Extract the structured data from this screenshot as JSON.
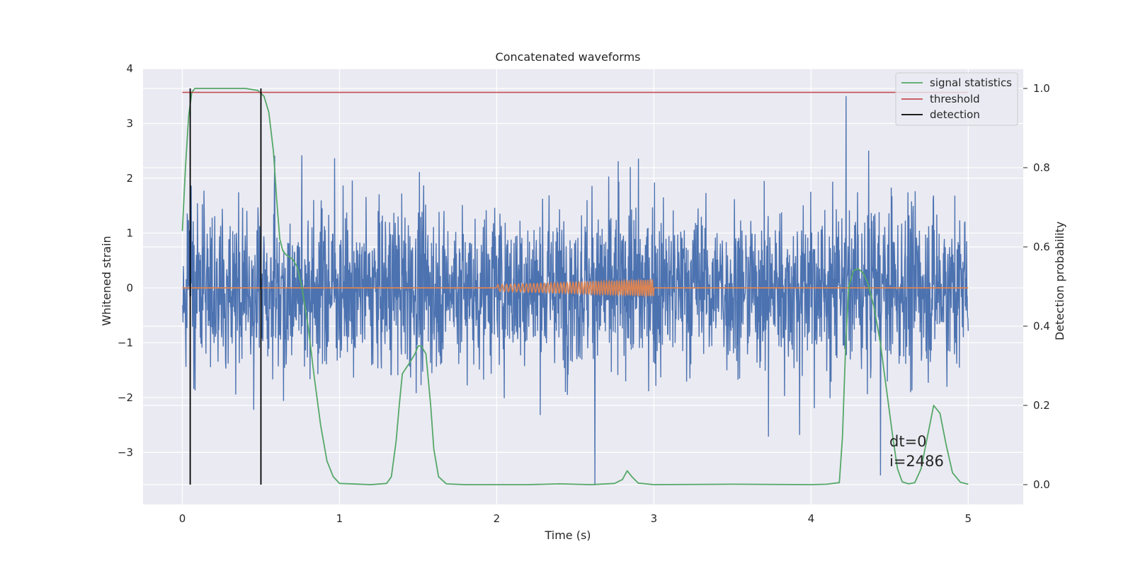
{
  "chart_data": {
    "type": "line",
    "title": "Concatenated waveforms",
    "xlabel": "Time (s)",
    "ylabel": "Whitened strain",
    "y2label": "Detection probability",
    "xlim": [
      -0.25,
      5.35
    ],
    "ylim": [
      -3.95,
      4.0
    ],
    "y2lim": [
      -0.05,
      1.05
    ],
    "x_ticks": [
      0,
      1,
      2,
      3,
      4,
      5
    ],
    "x_tick_labels": [
      "0",
      "1",
      "2",
      "3",
      "4",
      "5"
    ],
    "y_ticks": [
      -3,
      -2,
      -1,
      0,
      1,
      2,
      3,
      4
    ],
    "y_tick_labels": [
      "−3",
      "−2",
      "−1",
      "0",
      "1",
      "2",
      "3",
      "4"
    ],
    "y2_ticks": [
      0.0,
      0.2,
      0.4,
      0.6,
      0.8,
      1.0
    ],
    "y2_tick_labels": [
      "0.0",
      "0.2",
      "0.4",
      "0.6",
      "0.8",
      "1.0"
    ],
    "grid": true,
    "legend_position": "top-right",
    "legend": [
      "signal statistics",
      "threshold",
      "detection"
    ],
    "colors": {
      "noise": "#4c72b0",
      "injection": "#dd8452",
      "signal_statistics": "#55a868",
      "threshold": "#c44e52",
      "detection": "#000000",
      "plot_background": "#eaeaf2",
      "grid": "#ffffff"
    },
    "series": [
      {
        "description": "whitened strain noise",
        "axis": "left",
        "x_range": [
          0,
          5
        ],
        "amplitude_envelope": [
          -3.6,
          3.5
        ]
      },
      {
        "description": "injected chirp waveform",
        "axis": "left",
        "x_range": [
          2.0,
          3.0
        ],
        "amplitude_envelope": [
          -0.15,
          0.15
        ]
      },
      {
        "name": "signal statistics",
        "axis": "right",
        "x": [
          0.0,
          0.02,
          0.04,
          0.06,
          0.08,
          0.1,
          0.2,
          0.3,
          0.4,
          0.48,
          0.52,
          0.55,
          0.58,
          0.6,
          0.62,
          0.64,
          0.66,
          0.7,
          0.73,
          0.76,
          0.8,
          0.84,
          0.88,
          0.92,
          0.96,
          1.0,
          1.2,
          1.3,
          1.33,
          1.36,
          1.38,
          1.4,
          1.45,
          1.48,
          1.5,
          1.52,
          1.55,
          1.58,
          1.6,
          1.63,
          1.68,
          1.8,
          2.0,
          2.2,
          2.4,
          2.6,
          2.75,
          2.8,
          2.83,
          2.86,
          2.9,
          3.0,
          3.5,
          4.0,
          4.1,
          4.18,
          4.2,
          4.22,
          4.24,
          4.27,
          4.3,
          4.33,
          4.36,
          4.4,
          4.44,
          4.48,
          4.52,
          4.55,
          4.58,
          4.62,
          4.66,
          4.7,
          4.74,
          4.78,
          4.82,
          4.86,
          4.9,
          4.95,
          5.0
        ],
        "y": [
          0.64,
          0.8,
          0.93,
          0.99,
          1.0,
          1.0,
          1.0,
          1.0,
          1.0,
          0.995,
          0.98,
          0.94,
          0.84,
          0.72,
          0.62,
          0.59,
          0.58,
          0.57,
          0.55,
          0.5,
          0.4,
          0.27,
          0.15,
          0.06,
          0.02,
          0.003,
          0.0,
          0.003,
          0.02,
          0.11,
          0.2,
          0.28,
          0.31,
          0.33,
          0.35,
          0.35,
          0.33,
          0.2,
          0.09,
          0.02,
          0.002,
          0.0,
          0.0,
          0.0,
          0.002,
          0.0,
          0.003,
          0.013,
          0.035,
          0.02,
          0.004,
          0.0,
          0.001,
          0.0,
          0.001,
          0.005,
          0.12,
          0.35,
          0.5,
          0.54,
          0.545,
          0.535,
          0.51,
          0.45,
          0.36,
          0.24,
          0.12,
          0.04,
          0.007,
          0.002,
          0.005,
          0.04,
          0.12,
          0.2,
          0.18,
          0.1,
          0.03,
          0.006,
          0.001
        ]
      },
      {
        "name": "threshold",
        "axis": "right",
        "x": [
          0,
          5
        ],
        "y": [
          0.99,
          0.99
        ]
      },
      {
        "name": "detection",
        "axis": "right",
        "x": [
          0.05,
          0.5
        ],
        "y_range": [
          0.0,
          1.0
        ]
      }
    ],
    "annotation": [
      "dt=0",
      "i=2486"
    ]
  }
}
